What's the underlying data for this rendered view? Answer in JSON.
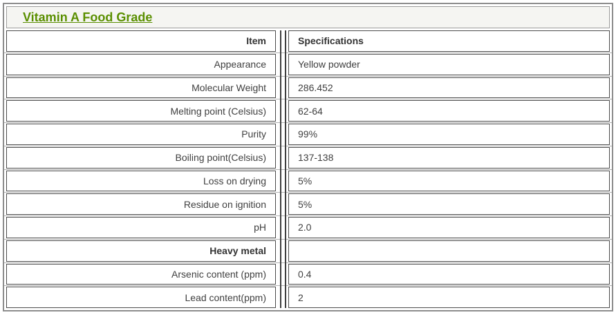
{
  "title": "Vitamin A Food Grade",
  "colors": {
    "title_green": "#5a8f00",
    "outer_border": "#8d8d8d",
    "cell_border": "#4a4a4a",
    "title_bar_bg": "#f5f5f2",
    "text": "#3f3f3f"
  },
  "table": {
    "header": {
      "item": "Item",
      "spec": "Specifications"
    },
    "rows": [
      {
        "item": "Appearance",
        "spec": "Yellow powder",
        "item_bold": false
      },
      {
        "item": "Molecular Weight",
        "spec": "286.452",
        "item_bold": false
      },
      {
        "item": "Melting point (Celsius)",
        "spec": "62-64",
        "item_bold": false
      },
      {
        "item": "Purity",
        "spec": "99%",
        "item_bold": false
      },
      {
        "item": "Boiling point(Celsius)",
        "spec": "137-138",
        "item_bold": false
      },
      {
        "item": "Loss on drying",
        "spec": "5%",
        "item_bold": false
      },
      {
        "item": "Residue on ignition",
        "spec": "5%",
        "item_bold": false
      },
      {
        "item": "pH",
        "spec": "2.0",
        "item_bold": false
      },
      {
        "item": "Heavy metal",
        "spec": "",
        "item_bold": true
      },
      {
        "item": "Arsenic content (ppm)",
        "spec": "0.4",
        "item_bold": false
      },
      {
        "item": "Lead content(ppm)",
        "spec": "2",
        "item_bold": false
      }
    ]
  }
}
